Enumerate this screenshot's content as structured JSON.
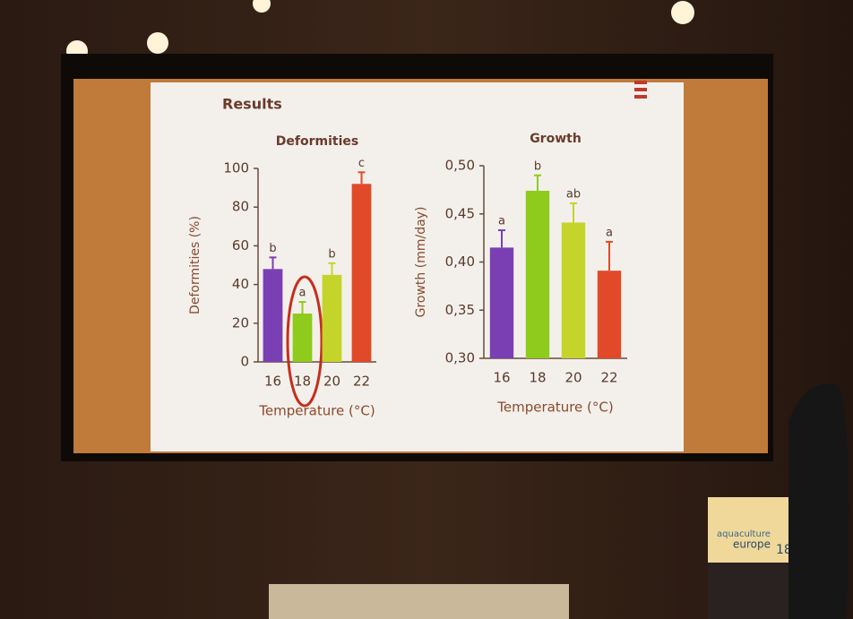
{
  "slide_title": "Results",
  "podium_text": [
    "aquaculture",
    "europe",
    "18"
  ],
  "chart_data": [
    {
      "type": "bar",
      "title": "Deformities",
      "ylabel": "Deformities (%)",
      "xlabel": "Temperature (°C)",
      "categories": [
        "16",
        "18",
        "20",
        "22"
      ],
      "values": [
        48,
        25,
        45,
        92
      ],
      "errors": [
        6,
        6,
        6,
        6
      ],
      "annotations": [
        "b",
        "a",
        "b",
        "c"
      ],
      "colors": [
        "#7a3fb3",
        "#8fcb1c",
        "#c5d42a",
        "#e04a28"
      ],
      "ylim": [
        0,
        100
      ],
      "yticks": [
        0,
        20,
        40,
        60,
        80,
        100
      ],
      "grid": false
    },
    {
      "type": "bar",
      "title": "Growth",
      "ylabel": "Growth (mm/day)",
      "xlabel": "Temperature (°C)",
      "categories": [
        "16",
        "18",
        "20",
        "22"
      ],
      "values": [
        0.415,
        0.474,
        0.441,
        0.391
      ],
      "errors": [
        0.018,
        0.016,
        0.02,
        0.03
      ],
      "annotations": [
        "a",
        "b",
        "ab",
        "a"
      ],
      "colors": [
        "#7a3fb3",
        "#8fcb1c",
        "#c5d42a",
        "#e04a28"
      ],
      "ylim": [
        0.3,
        0.5
      ],
      "yticks": [
        {
          "value": 0.3,
          "label": "0,30"
        },
        {
          "value": 0.35,
          "label": "0,35"
        },
        {
          "value": 0.4,
          "label": "0,40"
        },
        {
          "value": 0.45,
          "label": "0,45"
        },
        {
          "value": 0.5,
          "label": "0,50"
        }
      ],
      "grid": false
    }
  ]
}
